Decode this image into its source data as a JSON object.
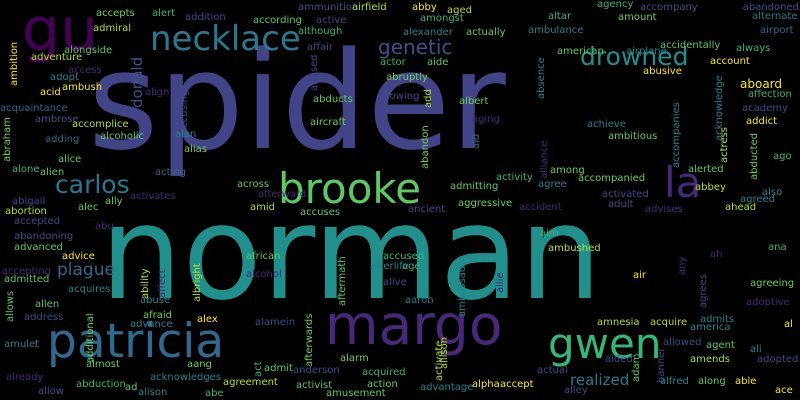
{
  "words": [
    {
      "text": "spider",
      "color": "#414487"
    },
    {
      "text": "norman",
      "color": "#21908c"
    },
    {
      "text": "margo",
      "color": "#482878"
    },
    {
      "text": "patricia",
      "color": "#31688e"
    },
    {
      "text": "brooke",
      "color": "#5ec962"
    },
    {
      "text": "gwen",
      "color": "#35b779"
    },
    {
      "text": "necklace",
      "color": "#2a788e"
    },
    {
      "text": "gu",
      "color": "#440154"
    },
    {
      "text": "la",
      "color": "#482878"
    },
    {
      "text": "carlos",
      "color": "#2a788e"
    },
    {
      "text": "drowned",
      "color": "#21908c"
    },
    {
      "text": "genetic",
      "color": "#3b528b"
    },
    {
      "text": "plague",
      "color": "#31688e"
    },
    {
      "text": "realized",
      "color": "#2a788e"
    },
    {
      "text": "donald",
      "color": "#3b528b"
    },
    {
      "text": "ambush",
      "color": "#fde725"
    },
    {
      "text": "acid",
      "color": "#fde725"
    },
    {
      "text": "adventure",
      "color": "#b5de2b"
    },
    {
      "text": "admiral",
      "color": "#b5de2b"
    },
    {
      "text": "accepts",
      "color": "#6ece58"
    },
    {
      "text": "alert",
      "color": "#35b779"
    },
    {
      "text": "addition",
      "color": "#3e4a89"
    },
    {
      "text": "according",
      "color": "#5ec962"
    },
    {
      "text": "ammunition",
      "color": "#3b528b"
    },
    {
      "text": "airfield",
      "color": "#b5de2b"
    },
    {
      "text": "abby",
      "color": "#fde725"
    },
    {
      "text": "aged",
      "color": "#b5de2b"
    },
    {
      "text": "agency",
      "color": "#35b779"
    },
    {
      "text": "accompany",
      "color": "#3b528b"
    },
    {
      "text": "abandoned",
      "color": "#3b528b"
    },
    {
      "text": "alternate",
      "color": "#2a788e"
    },
    {
      "text": "airport",
      "color": "#31688e"
    },
    {
      "text": "always",
      "color": "#35b779"
    },
    {
      "text": "accidentally",
      "color": "#5ec962"
    },
    {
      "text": "account",
      "color": "#fde725"
    },
    {
      "text": "airplane",
      "color": "#26828e"
    },
    {
      "text": "american",
      "color": "#5ec962"
    },
    {
      "text": "altar",
      "color": "#35b779"
    },
    {
      "text": "ambulance",
      "color": "#26828e"
    },
    {
      "text": "amount",
      "color": "#6ece58"
    },
    {
      "text": "amongst",
      "color": "#35b779"
    },
    {
      "text": "actually",
      "color": "#6ece58"
    },
    {
      "text": "alexander",
      "color": "#26828e"
    },
    {
      "text": "although",
      "color": "#35b779"
    },
    {
      "text": "active",
      "color": "#3e4a89"
    },
    {
      "text": "affair",
      "color": "#3e4a89"
    },
    {
      "text": "alongside",
      "color": "#5ec962"
    },
    {
      "text": "ambition",
      "color": "#fde725"
    },
    {
      "text": "access",
      "color": "#482878"
    },
    {
      "text": "adopt",
      "color": "#26828e"
    },
    {
      "text": "aboard",
      "color": "#fde725"
    },
    {
      "text": "affection",
      "color": "#35b779"
    },
    {
      "text": "academy",
      "color": "#3e4a89"
    },
    {
      "text": "addict",
      "color": "#fde725"
    },
    {
      "text": "acknowledge",
      "color": "#26828e"
    },
    {
      "text": "abusive",
      "color": "#fde725"
    },
    {
      "text": "absence",
      "color": "#26828e"
    },
    {
      "text": "actor",
      "color": "#35b779"
    },
    {
      "text": "aide",
      "color": "#5ec962"
    },
    {
      "text": "abused",
      "color": "#3e4a89"
    },
    {
      "text": "abruptly",
      "color": "#6ece58"
    },
    {
      "text": "abducts",
      "color": "#5ec962"
    },
    {
      "text": "allowing",
      "color": "#3e4a89"
    },
    {
      "text": "add",
      "color": "#b5de2b"
    },
    {
      "text": "albert",
      "color": "#6ece58"
    },
    {
      "text": "aid",
      "color": "#31688e"
    },
    {
      "text": "aging",
      "color": "#482878"
    },
    {
      "text": "achieve",
      "color": "#26828e"
    },
    {
      "text": "ambitious",
      "color": "#5ec962"
    },
    {
      "text": "accompanies",
      "color": "#26828e"
    },
    {
      "text": "actress",
      "color": "#b5de2b"
    },
    {
      "text": "acquaintance",
      "color": "#31688e"
    },
    {
      "text": "ambrose",
      "color": "#3b528b"
    },
    {
      "text": "accomplice",
      "color": "#b5de2b"
    },
    {
      "text": "align",
      "color": "#482878"
    },
    {
      "text": "accusing",
      "color": "#3e4a89"
    },
    {
      "text": "aircraft",
      "color": "#6ece58"
    },
    {
      "text": "abraham",
      "color": "#6ece58"
    },
    {
      "text": "adding",
      "color": "#31688e"
    },
    {
      "text": "alcoholic",
      "color": "#5ec962"
    },
    {
      "text": "alan",
      "color": "#26828e"
    },
    {
      "text": "alias",
      "color": "#6ece58"
    },
    {
      "text": "abandon",
      "color": "#6ece58"
    },
    {
      "text": "alien",
      "color": "#5ec962"
    },
    {
      "text": "alice",
      "color": "#5ec962"
    },
    {
      "text": "alone",
      "color": "#35b779"
    },
    {
      "text": "acting",
      "color": "#31688e"
    },
    {
      "text": "among",
      "color": "#6ece58"
    },
    {
      "text": "alliance",
      "color": "#482878"
    },
    {
      "text": "abducted",
      "color": "#6ece58"
    },
    {
      "text": "ago",
      "color": "#35b779"
    },
    {
      "text": "alerted",
      "color": "#5ec962"
    },
    {
      "text": "abbey",
      "color": "#b5de2b"
    },
    {
      "text": "also",
      "color": "#26828e"
    },
    {
      "text": "agreed",
      "color": "#26828e"
    },
    {
      "text": "ahead",
      "color": "#b5de2b"
    },
    {
      "text": "accompanied",
      "color": "#6ece58"
    },
    {
      "text": "activated",
      "color": "#3e4a89"
    },
    {
      "text": "adult",
      "color": "#3e4a89"
    },
    {
      "text": "advises",
      "color": "#482878"
    },
    {
      "text": "activity",
      "color": "#35b779"
    },
    {
      "text": "agree",
      "color": "#26828e"
    },
    {
      "text": "admitting",
      "color": "#5ec962"
    },
    {
      "text": "aggressive",
      "color": "#6ece58"
    },
    {
      "text": "accident",
      "color": "#482878"
    },
    {
      "text": "ancient",
      "color": "#3e4a89"
    },
    {
      "text": "accuses",
      "color": "#5ec962"
    },
    {
      "text": "amid",
      "color": "#b5de2b"
    },
    {
      "text": "afterward",
      "color": "#482878"
    },
    {
      "text": "across",
      "color": "#5ec962"
    },
    {
      "text": "activates",
      "color": "#482878"
    },
    {
      "text": "ally",
      "color": "#6ece58"
    },
    {
      "text": "alec",
      "color": "#5ec962"
    },
    {
      "text": "abu",
      "color": "#482878"
    },
    {
      "text": "abigail",
      "color": "#3e4a89"
    },
    {
      "text": "abortion",
      "color": "#b5de2b"
    },
    {
      "text": "accepted",
      "color": "#3e4a89"
    },
    {
      "text": "abandoning",
      "color": "#3e4a89"
    },
    {
      "text": "advanced",
      "color": "#5ec962"
    },
    {
      "text": "accepting",
      "color": "#482878"
    },
    {
      "text": "admitted",
      "color": "#5ec962"
    },
    {
      "text": "advice",
      "color": "#fde725"
    },
    {
      "text": "acquires",
      "color": "#26828e"
    },
    {
      "text": "allen",
      "color": "#5ec962"
    },
    {
      "text": "address",
      "color": "#3e4a89"
    },
    {
      "text": "allows",
      "color": "#5ec962"
    },
    {
      "text": "additional",
      "color": "#6ece58"
    },
    {
      "text": "amulet",
      "color": "#26828e"
    },
    {
      "text": "already",
      "color": "#482878"
    },
    {
      "text": "allow",
      "color": "#3b528b"
    },
    {
      "text": "abduction",
      "color": "#35b779"
    },
    {
      "text": "almost",
      "color": "#5ec962"
    },
    {
      "text": "ad",
      "color": "#6ece58"
    },
    {
      "text": "alison",
      "color": "#26828e"
    },
    {
      "text": "acknowledges",
      "color": "#26828e"
    },
    {
      "text": "aang",
      "color": "#6ece58"
    },
    {
      "text": "abe",
      "color": "#35b779"
    },
    {
      "text": "advance",
      "color": "#26828e"
    },
    {
      "text": "afraid",
      "color": "#6ece58"
    },
    {
      "text": "abuse",
      "color": "#26828e"
    },
    {
      "text": "alex",
      "color": "#fde725"
    },
    {
      "text": "albright",
      "color": "#b5de2b"
    },
    {
      "text": "affect",
      "color": "#482878"
    },
    {
      "text": "ability",
      "color": "#b5de2b"
    },
    {
      "text": "african",
      "color": "#5ec962"
    },
    {
      "text": "alcohol",
      "color": "#482878"
    },
    {
      "text": "age",
      "color": "#35b779"
    },
    {
      "text": "aftermath",
      "color": "#5ec962"
    },
    {
      "text": "accused",
      "color": "#35b779"
    },
    {
      "text": "afterlife",
      "color": "#26828e"
    },
    {
      "text": "alive",
      "color": "#3e4a89"
    },
    {
      "text": "aaron",
      "color": "#26828e"
    },
    {
      "text": "alamein",
      "color": "#3e4a89"
    },
    {
      "text": "ambassador",
      "color": "#26828e"
    },
    {
      "text": "allie",
      "color": "#482878"
    },
    {
      "text": "aim",
      "color": "#35b779"
    },
    {
      "text": "ambushed",
      "color": "#b5de2b"
    },
    {
      "text": "air",
      "color": "#fde725"
    },
    {
      "text": "any",
      "color": "#482878"
    },
    {
      "text": "ah",
      "color": "#482878"
    },
    {
      "text": "agrees",
      "color": "#3e4a89"
    },
    {
      "text": "ana",
      "color": "#35b779"
    },
    {
      "text": "agreeing",
      "color": "#6ece58"
    },
    {
      "text": "adoptive",
      "color": "#482878"
    },
    {
      "text": "al",
      "color": "#fde725"
    },
    {
      "text": "ali",
      "color": "#26828e"
    },
    {
      "text": "admits",
      "color": "#26828e"
    },
    {
      "text": "america",
      "color": "#26828e"
    },
    {
      "text": "acquire",
      "color": "#b5de2b"
    },
    {
      "text": "amnesia",
      "color": "#b5de2b"
    },
    {
      "text": "allowed",
      "color": "#3e4a89"
    },
    {
      "text": "agent",
      "color": "#5ec962"
    },
    {
      "text": "adopted",
      "color": "#3e4a89"
    },
    {
      "text": "amends",
      "color": "#b5de2b"
    },
    {
      "text": "aided",
      "color": "#3e4a89"
    },
    {
      "text": "adam",
      "color": "#5ec962"
    },
    {
      "text": "actual",
      "color": "#3e4a89"
    },
    {
      "text": "banner",
      "color": "#3e4a89"
    },
    {
      "text": "alfred",
      "color": "#26828e"
    },
    {
      "text": "along",
      "color": "#5ec962"
    },
    {
      "text": "able",
      "color": "#fde725"
    },
    {
      "text": "ace",
      "color": "#fde725"
    },
    {
      "text": "alley",
      "color": "#3e4a89"
    },
    {
      "text": "accept",
      "color": "#fde725"
    },
    {
      "text": "alpha",
      "color": "#fde725"
    },
    {
      "text": "advantage",
      "color": "#26828e"
    },
    {
      "text": "allison",
      "color": "#b5de2b"
    },
    {
      "text": "activate",
      "color": "#b5de2b"
    },
    {
      "text": "acquired",
      "color": "#35b779"
    },
    {
      "text": "action",
      "color": "#6ece58"
    },
    {
      "text": "alarm",
      "color": "#6ece58"
    },
    {
      "text": "afterwards",
      "color": "#6ece58"
    },
    {
      "text": "activist",
      "color": "#5ec962"
    },
    {
      "text": "anderson",
      "color": "#3e4a89"
    },
    {
      "text": "amusement",
      "color": "#5ec962"
    },
    {
      "text": "admit",
      "color": "#5ec962"
    },
    {
      "text": "agreement",
      "color": "#b5de2b"
    },
    {
      "text": "act",
      "color": "#35b779"
    }
  ]
}
